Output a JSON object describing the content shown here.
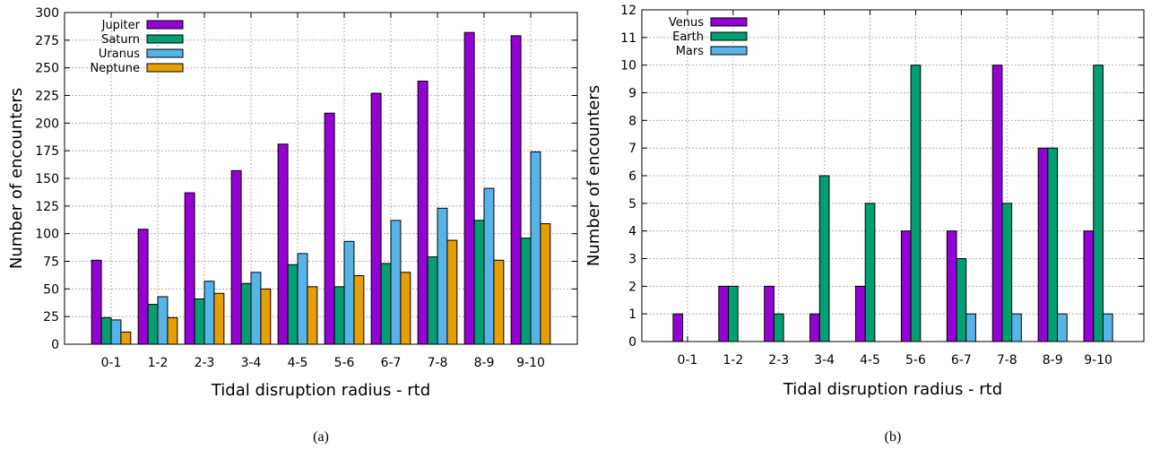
{
  "chart_data": [
    {
      "type": "bar",
      "caption": "(a)",
      "xlabel": "Tidal disruption radius - rtd",
      "ylabel": "Number of encounters",
      "categories": [
        "0-1",
        "1-2",
        "2-3",
        "3-4",
        "4-5",
        "5-6",
        "6-7",
        "7-8",
        "8-9",
        "9-10"
      ],
      "ylim": [
        0,
        300
      ],
      "yticks": [
        0,
        25,
        50,
        75,
        100,
        125,
        150,
        175,
        200,
        225,
        250,
        275,
        300
      ],
      "grid": true,
      "legend_position": "top-left",
      "series": [
        {
          "name": "Jupiter",
          "color": "#9400d3",
          "values": [
            76,
            104,
            137,
            157,
            181,
            209,
            227,
            238,
            282,
            279
          ]
        },
        {
          "name": "Saturn",
          "color": "#009e73",
          "values": [
            24,
            36,
            41,
            55,
            72,
            52,
            73,
            79,
            112,
            96
          ]
        },
        {
          "name": "Uranus",
          "color": "#56b4e9",
          "values": [
            22,
            43,
            57,
            65,
            82,
            93,
            112,
            123,
            141,
            174
          ]
        },
        {
          "name": "Neptune",
          "color": "#e69f00",
          "values": [
            11,
            24,
            46,
            50,
            52,
            62,
            65,
            94,
            76,
            109
          ]
        }
      ]
    },
    {
      "type": "bar",
      "caption": "(b)",
      "xlabel": "Tidal disruption radius - rtd",
      "ylabel": "Number of encounters",
      "categories": [
        "0-1",
        "1-2",
        "2-3",
        "3-4",
        "4-5",
        "5-6",
        "6-7",
        "7-8",
        "8-9",
        "9-10"
      ],
      "ylim": [
        0,
        12
      ],
      "yticks": [
        0,
        1,
        2,
        3,
        4,
        5,
        6,
        7,
        8,
        9,
        10,
        11,
        12
      ],
      "grid": true,
      "legend_position": "top-left",
      "series": [
        {
          "name": "Venus",
          "color": "#9400d3",
          "values": [
            1,
            2,
            2,
            1,
            2,
            4,
            4,
            10,
            7,
            4
          ]
        },
        {
          "name": "Earth",
          "color": "#009e73",
          "values": [
            0,
            2,
            1,
            6,
            5,
            10,
            3,
            5,
            7,
            10
          ]
        },
        {
          "name": "Mars",
          "color": "#56b4e9",
          "values": [
            0,
            0,
            0,
            0,
            0,
            0,
            1,
            1,
            1,
            1
          ]
        }
      ]
    }
  ]
}
